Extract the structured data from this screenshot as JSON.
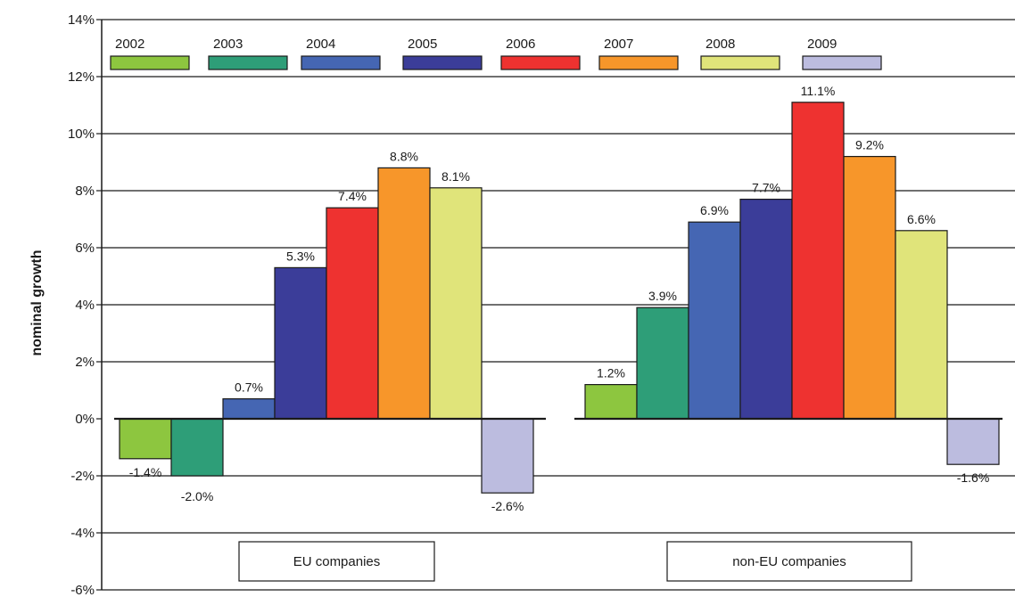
{
  "chart_data": {
    "type": "bar",
    "title": "",
    "xlabel": "",
    "ylabel": "nominal growth",
    "ylim": [
      -6,
      14
    ],
    "yticks": [
      -6,
      -4,
      -2,
      0,
      2,
      4,
      6,
      8,
      10,
      12,
      14
    ],
    "ytick_labels": [
      "-6%",
      "-4%",
      "-2%",
      "0%",
      "2%",
      "4%",
      "6%",
      "8%",
      "10%",
      "12%",
      "14%"
    ],
    "grid": true,
    "legend_position": "top",
    "categories": [
      "EU companies",
      "non-EU companies"
    ],
    "series": [
      {
        "name": "2002",
        "color": "#8dc63f",
        "values": [
          -1.4,
          1.2
        ],
        "labels": [
          "-1.4%",
          "1.2%"
        ]
      },
      {
        "name": "2003",
        "color": "#2e9e78",
        "values": [
          -2.0,
          3.9
        ],
        "labels": [
          "-2.0%",
          "3.9%"
        ]
      },
      {
        "name": "2004",
        "color": "#4566b3",
        "values": [
          0.7,
          6.9
        ],
        "labels": [
          "0.7%",
          "6.9%"
        ]
      },
      {
        "name": "2005",
        "color": "#3b3d99",
        "values": [
          5.3,
          7.7
        ],
        "labels": [
          "5.3%",
          "7.7%"
        ]
      },
      {
        "name": "2006",
        "color": "#ee3230",
        "values": [
          7.4,
          11.1
        ],
        "labels": [
          "7.4%",
          "11.1%"
        ]
      },
      {
        "name": "2007",
        "color": "#f7962a",
        "values": [
          8.8,
          9.2
        ],
        "labels": [
          "8.8%",
          "9.2%"
        ]
      },
      {
        "name": "2008",
        "color": "#e0e47a",
        "values": [
          8.1,
          6.6
        ],
        "labels": [
          "8.1%",
          "6.6%"
        ]
      },
      {
        "name": "2009",
        "color": "#bcbcdf",
        "values": [
          -2.6,
          -1.6
        ],
        "labels": [
          "-2.6%",
          "-1.6%"
        ]
      }
    ]
  }
}
